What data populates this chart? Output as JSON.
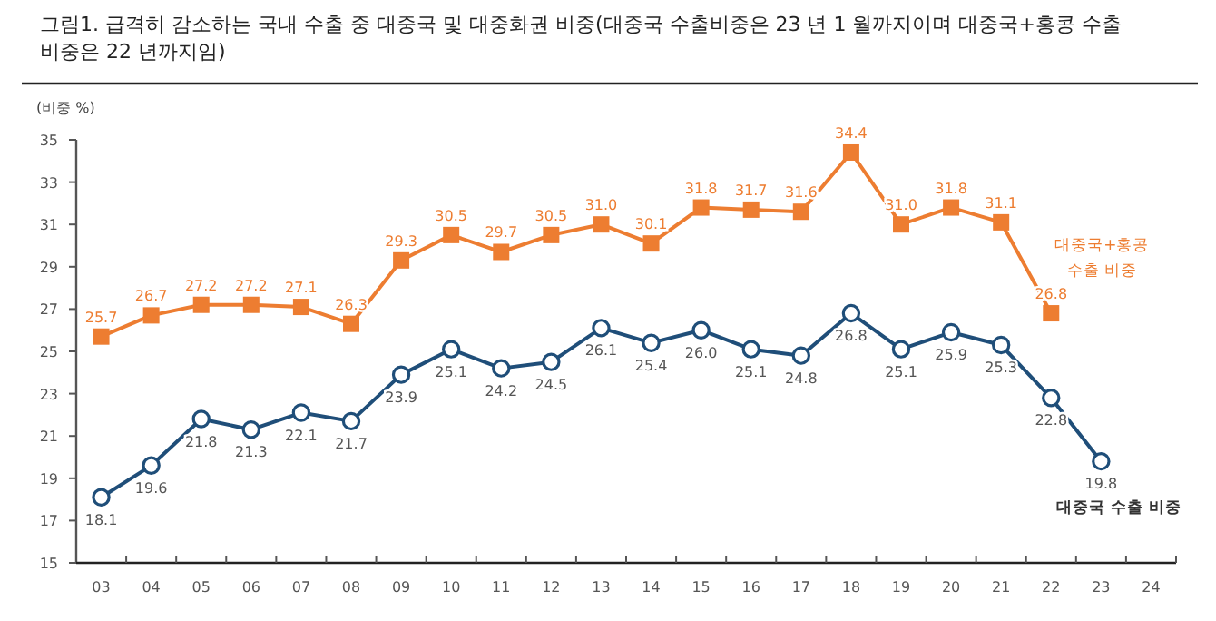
{
  "chart_data": {
    "type": "line",
    "title": "그림1.  급격히 감소하는 국내 수출 중 대중국 및 대중화권 비중(대중국 수출비중은 23 년 1 월까지이며 대중국+홍콩 수출 비중은 22 년까지임)",
    "ylabel": "(비중 %)",
    "categories": [
      "03",
      "04",
      "05",
      "06",
      "07",
      "08",
      "09",
      "10",
      "11",
      "12",
      "13",
      "14",
      "15",
      "16",
      "17",
      "18",
      "19",
      "20",
      "21",
      "22",
      "23",
      "24"
    ],
    "series": [
      {
        "name": "대중국+홍콩 수출 비중",
        "color": "#ed7d31",
        "marker": "square",
        "values": [
          25.7,
          26.7,
          27.2,
          27.2,
          27.1,
          26.3,
          29.3,
          30.5,
          29.7,
          30.5,
          31.0,
          30.1,
          31.8,
          31.7,
          31.6,
          34.4,
          31.0,
          31.8,
          31.1,
          26.8,
          null,
          null
        ],
        "value_labels": [
          "25.7",
          "26.7",
          "27.2",
          "27.2",
          "27.1",
          "26.3",
          "29.3",
          "30.5",
          "29.7",
          "30.5",
          "31.0",
          "30.1",
          "31.8",
          "31.7",
          "31.6",
          "34.4",
          "31.0",
          "31.8",
          "31.1",
          "26.8",
          null,
          null
        ]
      },
      {
        "name": "대중국 수출 비중",
        "color": "#1f4e79",
        "marker": "circle",
        "values": [
          18.1,
          19.6,
          21.8,
          21.3,
          22.1,
          21.7,
          23.9,
          25.1,
          24.2,
          24.5,
          26.1,
          25.4,
          26.0,
          25.1,
          24.8,
          26.8,
          25.1,
          25.9,
          25.3,
          22.8,
          19.8,
          null
        ],
        "value_labels": [
          "18.1",
          "19.6",
          "21.8",
          "21.3",
          "22.1",
          "21.7",
          "23.9",
          "25.1",
          "24.2",
          "24.5",
          "26.1",
          "25.4",
          "26.0",
          "25.1",
          "24.8",
          "26.8",
          "25.1",
          "25.9",
          "25.3",
          "22.8",
          "19.8",
          null
        ]
      }
    ],
    "ylim": [
      15,
      35
    ],
    "yticks": [
      15,
      17,
      19,
      21,
      23,
      25,
      27,
      29,
      31,
      33,
      35
    ],
    "grid": false,
    "legend": false,
    "line_style": "solid"
  }
}
